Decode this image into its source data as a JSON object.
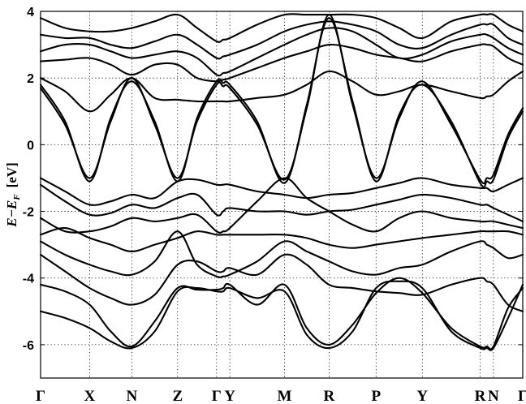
{
  "chart_data": {
    "type": "line",
    "title": "",
    "xlabel": "",
    "ylabel": "E−E_F [eV]",
    "ylabel_parts": {
      "e": "E",
      "minus": "−",
      "ef": "E",
      "ef_sub": "F",
      "unit": "[eV]"
    },
    "ylim": [
      -7,
      4
    ],
    "y_ticks": [
      -6,
      -4,
      -2,
      0,
      2,
      4
    ],
    "y_tick_labels": [
      "-6",
      "-4",
      "-2",
      "0",
      "2",
      "4"
    ],
    "xlim": [
      0,
      12
    ],
    "k_points": [
      {
        "label": "Γ",
        "x": 0
      },
      {
        "label": "X",
        "x": 1.22
      },
      {
        "label": "N",
        "x": 2.27
      },
      {
        "label": "Z",
        "x": 3.41
      },
      {
        "label": "Γ",
        "x": 4.38
      },
      {
        "label": "Y",
        "x": 4.71
      },
      {
        "label": "M",
        "x": 6.07
      },
      {
        "label": "R",
        "x": 7.18
      },
      {
        "label": "P",
        "x": 8.35
      },
      {
        "label": "Y",
        "x": 9.5
      },
      {
        "label": "R",
        "x": 10.94
      },
      {
        "label": "N",
        "x": 11.27
      },
      {
        "label": "Γ",
        "x": 12.0
      }
    ],
    "grid": {
      "vertical": true,
      "horizontal": true,
      "style": "dotted"
    },
    "series_x": [
      0,
      0.61,
      1.22,
      1.745,
      2.27,
      2.84,
      3.41,
      3.895,
      4.38,
      4.545,
      4.71,
      5.39,
      6.07,
      6.625,
      7.18,
      7.765,
      8.35,
      8.925,
      9.5,
      10.22,
      10.94,
      11.105,
      11.27,
      11.635,
      12.0
    ],
    "series": [
      {
        "values": [
          -5.0,
          -5.2,
          -5.5,
          -5.9,
          -6.1,
          -5.6,
          -4.4,
          -4.3,
          -4.4,
          -4.4,
          -4.3,
          -4.6,
          -4.4,
          -5.7,
          -6.1,
          -5.6,
          -4.3,
          -4.1,
          -4.3,
          -5.6,
          -6.1,
          -6.1,
          -6.1,
          -5.2,
          -4.2
        ]
      },
      {
        "values": [
          -4.2,
          -4.4,
          -4.8,
          -5.6,
          -6.05,
          -5.3,
          -4.3,
          -4.35,
          -4.35,
          -4.3,
          -4.2,
          -4.8,
          -4.2,
          -5.5,
          -6.0,
          -5.4,
          -4.45,
          -4.0,
          -4.45,
          -5.5,
          -6.05,
          -6.05,
          -6.05,
          -4.9,
          -4.3
        ]
      },
      {
        "values": [
          -3.3,
          -3.8,
          -4.3,
          -4.6,
          -4.8,
          -4.5,
          -3.6,
          -3.5,
          -3.8,
          -3.8,
          -3.7,
          -3.9,
          -3.3,
          -3.6,
          -4.2,
          -4.3,
          -4.4,
          -4.45,
          -4.5,
          -4.2,
          -4.0,
          -4.1,
          -4.2,
          -4.8,
          -5.0
        ]
      },
      {
        "values": [
          -2.9,
          -3.3,
          -3.6,
          -3.8,
          -3.9,
          -3.5,
          -2.6,
          -3.6,
          -3.95,
          -3.95,
          -3.9,
          -3.5,
          -2.9,
          -3.2,
          -3.5,
          -3.8,
          -3.9,
          -3.7,
          -3.6,
          -3.2,
          -2.9,
          -3.0,
          -3.1,
          -3.4,
          -3.3
        ]
      },
      {
        "values": [
          -2.7,
          -2.5,
          -2.8,
          -3.0,
          -3.2,
          -3.0,
          -2.8,
          -2.6,
          -2.7,
          -2.7,
          -2.7,
          -2.7,
          -2.7,
          -2.8,
          -3.0,
          -3.1,
          -3.0,
          -2.9,
          -2.8,
          -2.7,
          -2.6,
          -2.6,
          -2.6,
          -2.6,
          -2.7
        ]
      },
      {
        "values": [
          -2.2,
          -2.6,
          -2.6,
          -2.45,
          -2.2,
          -2.3,
          -2.2,
          -2.1,
          -2.6,
          -2.6,
          -2.5,
          -1.7,
          -1.0,
          -1.6,
          -2.0,
          -2.4,
          -2.6,
          -2.2,
          -2.0,
          -2.2,
          -2.3,
          -2.3,
          -2.3,
          -2.4,
          -2.5
        ]
      },
      {
        "values": [
          -1.2,
          -1.7,
          -2.1,
          -2.05,
          -1.8,
          -1.9,
          -1.6,
          -1.5,
          -2.1,
          -2.0,
          -1.9,
          -2.0,
          -2.0,
          -2.1,
          -2.0,
          -1.95,
          -1.8,
          -1.65,
          -1.5,
          -1.6,
          -1.8,
          -1.8,
          -1.9,
          -2.1,
          -2.3
        ]
      },
      {
        "values": [
          -1.0,
          -1.4,
          -1.8,
          -1.7,
          -1.5,
          -1.6,
          -1.1,
          -1.05,
          -1.2,
          -1.2,
          -1.2,
          -1.4,
          -1.5,
          -1.6,
          -1.5,
          -1.45,
          -1.3,
          -1.15,
          -1.0,
          -1.2,
          -1.3,
          -1.3,
          -1.4,
          -1.2,
          -1.0
        ]
      },
      {
        "values": [
          1.7,
          0.6,
          -1.0,
          0.7,
          2.0,
          0.6,
          -1.0,
          0.7,
          1.8,
          1.75,
          1.7,
          0.6,
          -1.05,
          1.1,
          3.9,
          1.2,
          -1.0,
          0.8,
          1.9,
          0.6,
          -1.05,
          -1.0,
          -0.9,
          0.3,
          1.1
        ]
      },
      {
        "values": [
          1.8,
          0.7,
          -1.1,
          0.8,
          1.9,
          0.7,
          -1.1,
          0.8,
          1.9,
          1.85,
          1.8,
          0.7,
          -1.15,
          1.2,
          3.8,
          1.3,
          -1.1,
          0.9,
          1.8,
          0.7,
          -1.15,
          -1.1,
          -1.05,
          0.2,
          1.0
        ]
      },
      {
        "values": [
          2.0,
          1.6,
          1.0,
          1.5,
          2.0,
          1.4,
          1.35,
          1.3,
          1.3,
          1.3,
          1.3,
          1.4,
          1.5,
          1.8,
          2.2,
          1.9,
          1.5,
          1.6,
          1.8,
          1.6,
          1.4,
          1.45,
          1.5,
          1.9,
          2.2
        ]
      },
      {
        "values": [
          2.5,
          2.55,
          2.6,
          2.4,
          2.1,
          2.4,
          2.4,
          2.0,
          1.9,
          1.95,
          2.0,
          2.3,
          2.6,
          2.8,
          3.0,
          2.9,
          2.7,
          2.6,
          2.5,
          2.8,
          3.0,
          3.0,
          2.95,
          2.6,
          2.4
        ]
      },
      {
        "values": [
          2.8,
          3.0,
          3.0,
          2.8,
          2.6,
          2.7,
          2.8,
          2.6,
          2.1,
          2.15,
          2.2,
          2.6,
          3.0,
          3.3,
          3.5,
          3.4,
          3.0,
          2.6,
          2.7,
          3.1,
          3.3,
          3.3,
          3.2,
          2.9,
          2.7
        ]
      },
      {
        "values": [
          3.3,
          3.2,
          3.2,
          3.0,
          2.9,
          3.1,
          3.3,
          3.0,
          2.6,
          2.65,
          2.7,
          3.0,
          3.4,
          3.6,
          3.7,
          3.6,
          3.4,
          3.0,
          2.9,
          3.3,
          3.6,
          3.6,
          3.6,
          3.2,
          3.0
        ]
      },
      {
        "values": [
          3.8,
          3.5,
          3.4,
          3.4,
          3.5,
          3.7,
          3.9,
          3.5,
          3.1,
          3.15,
          3.2,
          3.6,
          3.9,
          3.9,
          3.9,
          3.9,
          3.8,
          3.5,
          3.2,
          3.7,
          3.9,
          3.9,
          3.9,
          3.6,
          3.4
        ]
      }
    ]
  }
}
